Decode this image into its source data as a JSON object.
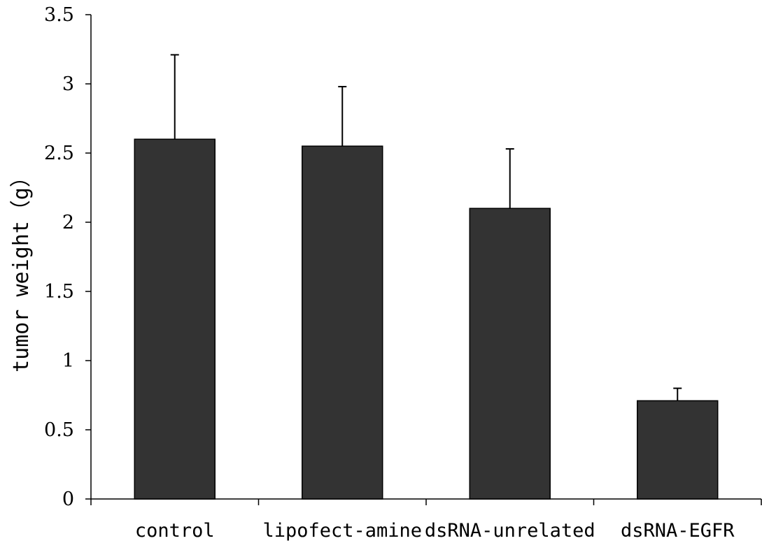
{
  "chart_data": {
    "type": "bar",
    "title": "",
    "xlabel": "",
    "ylabel": "tumor weight（g）",
    "categories": [
      "control",
      "lipofect-amine",
      "dsRNA-unrelated",
      "dsRNA-EGFR"
    ],
    "values": [
      2.6,
      2.55,
      2.1,
      0.71
    ],
    "error_upper": [
      0.61,
      0.43,
      0.43,
      0.09
    ],
    "ylim": [
      0,
      3.5
    ],
    "yticks": [
      0,
      0.5,
      1,
      1.5,
      2,
      2.5,
      3,
      3.5
    ],
    "ytick_labels": [
      "0",
      "0.5",
      "1",
      "1.5",
      "2",
      "2.5",
      "3",
      "3.5"
    ],
    "grid": false,
    "bar_color": "#333333"
  }
}
